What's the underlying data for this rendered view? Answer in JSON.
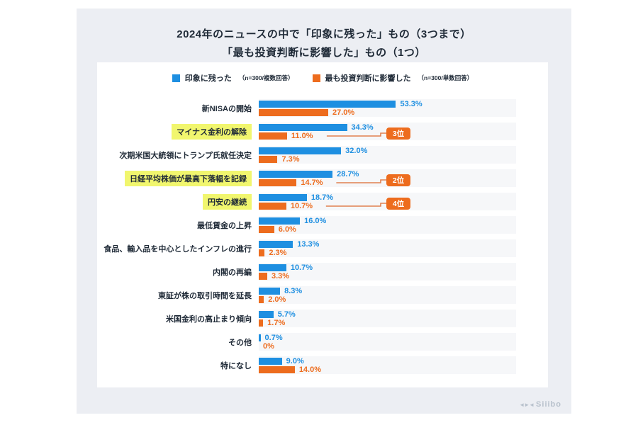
{
  "page": {
    "title_line1": "2024年のニュースの中で「印象に残った」もの（3つまで）",
    "title_line2": "「最も投資判断に影響した」もの（1つ）"
  },
  "legend": {
    "item1": {
      "label": "印象に残った",
      "sub": "（n=300/複数回答）"
    },
    "item2": {
      "label": "最も投資判断に影響した",
      "sub": "（n=300/単数回答）"
    }
  },
  "colors": {
    "blue": "#1E8FE1",
    "orange": "#ED6C1E",
    "highlight_yellow": "#F1F66E",
    "badge_orange": "#ED6C1E",
    "connector": "#E08050",
    "card_bg": "#ECEEF3",
    "track_bg": "#F6F7F9",
    "text_dark": "#1F2A37",
    "watermark_gray": "#B8C1CC"
  },
  "watermark": {
    "mark": "◄►◄",
    "text": "Siiibo"
  },
  "chart_data": {
    "type": "bar",
    "orientation": "horizontal",
    "title": "2024年のニュースの中で「印象に残った」もの（3つまで）「最も投資判断に影響した」もの（1つ）",
    "xlim": [
      0,
      100
    ],
    "grid": false,
    "legend_position": "top",
    "categories": [
      "新NISAの開始",
      "マイナス金利の解除",
      "次期米国大統領にトランプ氏就任決定",
      "日経平均株価が最高下落幅を記録",
      "円安の継続",
      "最低賃金の上昇",
      "食品、輸入品を中心としたインフレの進行",
      "内閣の再編",
      "東証が株の取引時間を延長",
      "米国金利の高止まり傾向",
      "その他",
      "特になし"
    ],
    "series": [
      {
        "name": "印象に残った",
        "n": "n=300/複数回答",
        "color": "#1E8FE1",
        "values": [
          53.3,
          34.3,
          32.0,
          28.7,
          18.7,
          16.0,
          13.3,
          10.7,
          8.3,
          5.7,
          0.7,
          9.0
        ],
        "labels": [
          "53.3%",
          "34.3%",
          "32.0%",
          "28.7%",
          "18.7%",
          "16.0%",
          "13.3%",
          "10.7%",
          "8.3%",
          "5.7%",
          "0.7%",
          "9.0%"
        ]
      },
      {
        "name": "最も投資判断に影響した",
        "n": "n=300/単数回答",
        "color": "#ED6C1E",
        "values": [
          27.0,
          11.0,
          7.3,
          14.7,
          10.7,
          6.0,
          2.3,
          3.3,
          2.0,
          1.7,
          0,
          14.0
        ],
        "labels": [
          "27.0%",
          "11.0%",
          "7.3%",
          "14.7%",
          "10.7%",
          "6.0%",
          "2.3%",
          "3.3%",
          "2.0%",
          "1.7%",
          "0%",
          "14.0%"
        ]
      }
    ],
    "highlighted_rows": [
      1,
      3,
      4
    ],
    "ranks": [
      {
        "row": 1,
        "label": "3位"
      },
      {
        "row": 3,
        "label": "2位"
      },
      {
        "row": 4,
        "label": "4位"
      }
    ]
  }
}
